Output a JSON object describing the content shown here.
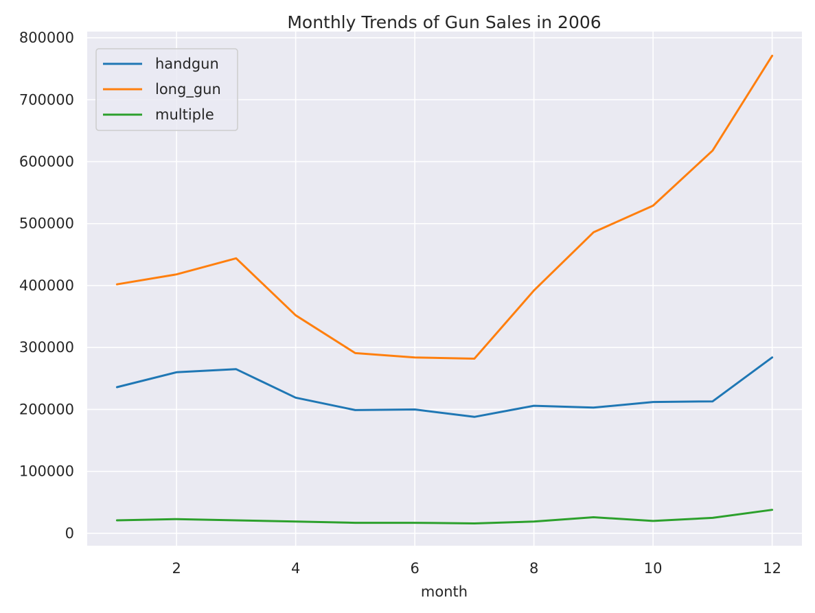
{
  "chart_data": {
    "type": "line",
    "title": "Monthly Trends of Gun Sales in 2006",
    "xlabel": "month",
    "ylabel": "",
    "x": [
      1,
      2,
      3,
      4,
      5,
      6,
      7,
      8,
      9,
      10,
      11,
      12
    ],
    "xlim": [
      0.5,
      12.5
    ],
    "ylim": [
      -20000,
      810000
    ],
    "xticks": [
      2,
      4,
      6,
      8,
      10,
      12
    ],
    "xtick_labels": [
      "2",
      "4",
      "6",
      "8",
      "10",
      "12"
    ],
    "yticks": [
      0,
      100000,
      200000,
      300000,
      400000,
      500000,
      600000,
      700000,
      800000
    ],
    "ytick_labels": [
      "0",
      "100000",
      "200000",
      "300000",
      "400000",
      "500000",
      "600000",
      "700000",
      "800000"
    ],
    "grid": true,
    "legend_position": "top-left",
    "series": [
      {
        "name": "handgun",
        "color": "#1f77b4",
        "values": [
          236000,
          260000,
          265000,
          219000,
          199000,
          200000,
          188000,
          206000,
          203000,
          212000,
          213000,
          284000
        ]
      },
      {
        "name": "long_gun",
        "color": "#ff7f0e",
        "values": [
          402000,
          418000,
          444000,
          352000,
          291000,
          284000,
          282000,
          392000,
          486000,
          529000,
          618000,
          771000
        ]
      },
      {
        "name": "multiple",
        "color": "#2ca02c",
        "values": [
          21000,
          23000,
          21000,
          19000,
          17000,
          17000,
          16000,
          19000,
          26000,
          20000,
          25000,
          38000
        ]
      }
    ]
  }
}
